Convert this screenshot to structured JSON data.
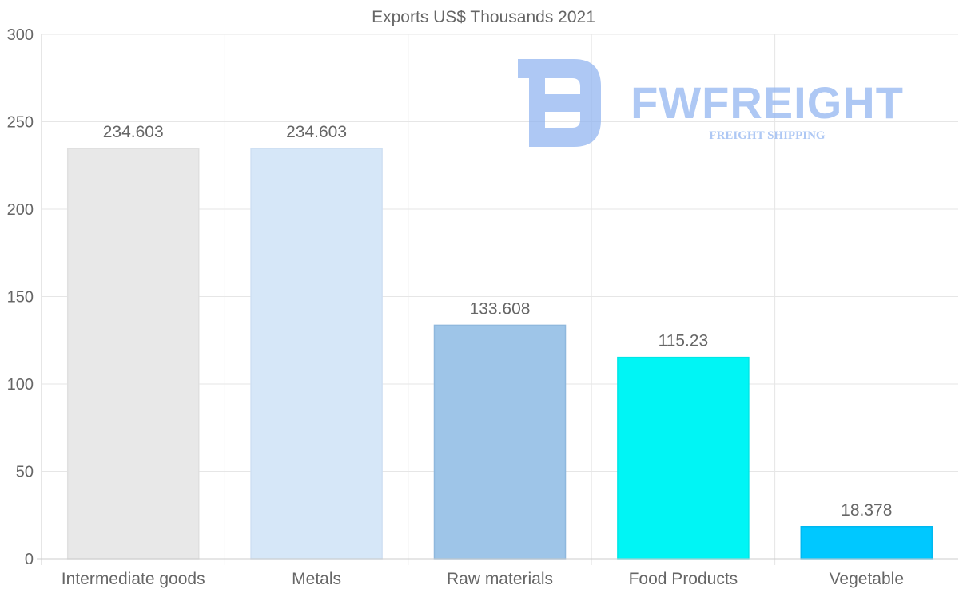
{
  "chart_data": {
    "type": "bar",
    "title": "Exports US$ Thousands 2021",
    "xlabel": "",
    "ylabel": "",
    "ylim": [
      0,
      300
    ],
    "yticks": [
      0,
      50,
      100,
      150,
      200,
      250,
      300
    ],
    "grid": true,
    "categories": [
      "Intermediate goods",
      "Metals",
      "Raw materials",
      "Food Products",
      "Vegetable"
    ],
    "values": [
      234.603,
      234.603,
      133.608,
      115.23,
      18.378
    ],
    "value_labels": [
      "234.603",
      "234.603",
      "133.608",
      "115.23",
      "18.378"
    ],
    "colors": [
      "#e8e8e8",
      "#d6e7f8",
      "#9ec5e8",
      "#00f5f5",
      "#00c8ff"
    ],
    "border_colors": [
      "#e0e0e0",
      "#cfe0f3",
      "#8fb8dd",
      "#00e6e6",
      "#00b8f0"
    ]
  },
  "watermark": {
    "brand": "FWFREIGHT",
    "tagline": "FREIGHT SHIPPING",
    "color": "#8fb3f0"
  },
  "colors": {
    "text": "#666666",
    "grid": "#e6e6e6",
    "axis": "#cccccc"
  }
}
